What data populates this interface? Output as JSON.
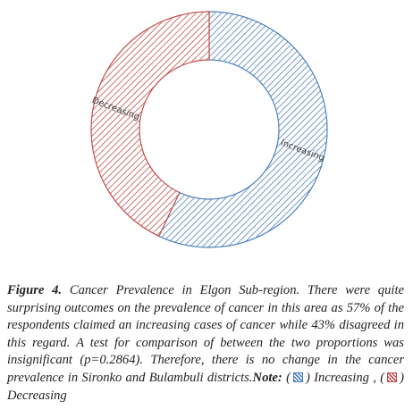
{
  "chart_data": {
    "type": "donut",
    "categories": [
      "Increasing",
      "Decreasing"
    ],
    "values": [
      57,
      43
    ],
    "colors": [
      "#4f81bd",
      "#c0504d"
    ],
    "start_angle": 0,
    "direction": "clockwise"
  },
  "caption": {
    "figure_label": "Figure 4.",
    "text": "Cancer Prevalence in Elgon Sub-region. There were quite surprising outcomes on the prevalence of cancer in this area as 57% of the respondents claimed an increasing cases of cancer while 43% disagreed in this regard. A test for comparison of between the two proportions was insignificant (p=0.2864). Therefore, there is no change in the cancer prevalence in Sironko and Bulambuli districts.",
    "note": {
      "label": "Note:",
      "open": "(",
      "close": ")",
      "separator": ","
    }
  }
}
